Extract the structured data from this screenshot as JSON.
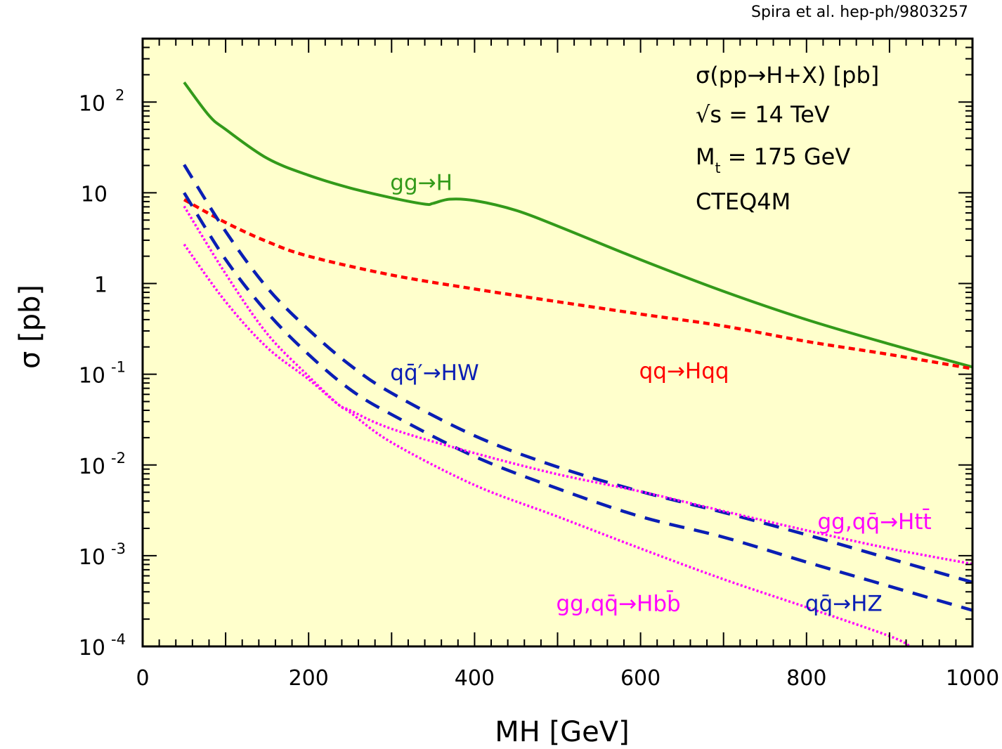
{
  "credit": "Spira et al. hep-ph/9803257",
  "info_box": {
    "lines": [
      {
        "text": "σ(pp→H+X) [pb]"
      },
      {
        "text": "√s = 14 TeV"
      },
      {
        "text": "M",
        "sub": "t",
        "rest": " = 175 GeV"
      },
      {
        "text": "CTEQ4M"
      }
    ]
  },
  "colors": {
    "plot_background": "#ffffcc",
    "axis": "#000000",
    "gg_H": "#339a1a",
    "qq_Hqq": "#ff0000",
    "HW": "#0a1eb4",
    "HZ": "#0a1eb4",
    "Htt": "#ff00ff",
    "Hbb": "#ff00ff"
  },
  "chart_data": {
    "type": "line",
    "title": "σ(pp→H+X) [pb]",
    "xlabel": "MH [GeV]",
    "ylabel": "σ [pb]",
    "xscale": "linear",
    "yscale": "log",
    "xlim": [
      0,
      1000
    ],
    "ylim": [
      0.0001,
      500
    ],
    "grid": false,
    "x_ticks": [
      0,
      200,
      400,
      600,
      800,
      1000
    ],
    "x_tick_labels": [
      "0",
      "200",
      "400",
      "600",
      "800",
      "1000"
    ],
    "y_ticks": [
      {
        "value": 100,
        "base": "10",
        "exp": "2"
      },
      {
        "value": 10,
        "base": "10",
        "exp": ""
      },
      {
        "value": 1,
        "base": "1",
        "exp": ""
      },
      {
        "value": 0.1,
        "base": "10",
        "exp": "-1"
      },
      {
        "value": 0.01,
        "base": "10",
        "exp": "-2"
      },
      {
        "value": 0.001,
        "base": "10",
        "exp": "-3"
      },
      {
        "value": 0.0001,
        "base": "10",
        "exp": "-4"
      }
    ],
    "series": [
      {
        "name": "gg→H",
        "key": "gg_H",
        "style": "solid",
        "label": {
          "text": "gg→H",
          "x": 300,
          "y": 13
        },
        "x": [
          50,
          80,
          100,
          150,
          200,
          250,
          300,
          340,
          350,
          370,
          400,
          450,
          500,
          600,
          700,
          800,
          900,
          1000
        ],
        "y": [
          165,
          71,
          50,
          24,
          15.6,
          11.3,
          8.8,
          7.5,
          7.65,
          8.5,
          8.2,
          6.4,
          4.3,
          1.83,
          0.82,
          0.4,
          0.215,
          0.12
        ]
      },
      {
        "name": "qq→Hqq",
        "key": "qq_Hqq",
        "style": "dotted-dash",
        "label": {
          "text": "qq→Hqq",
          "x": 600,
          "y": 0.11
        },
        "x": [
          50,
          100,
          150,
          200,
          300,
          400,
          500,
          600,
          700,
          800,
          900,
          1000
        ],
        "y": [
          8.4,
          4.7,
          2.9,
          2.0,
          1.24,
          0.87,
          0.63,
          0.46,
          0.34,
          0.23,
          0.165,
          0.115
        ]
      },
      {
        "name": "qq̄′→HW",
        "key": "HW",
        "style": "dashed",
        "label": {
          "text": "qq̄′→HW",
          "x": 300,
          "y": 0.105
        },
        "x": [
          50,
          100,
          150,
          200,
          250,
          300,
          400,
          500,
          600,
          700,
          800,
          900,
          1000
        ],
        "y": [
          20.4,
          3.75,
          0.9,
          0.31,
          0.126,
          0.062,
          0.021,
          0.0095,
          0.0051,
          0.003,
          0.0017,
          0.00093,
          0.00051
        ]
      },
      {
        "name": "qq̄→HZ",
        "key": "HZ",
        "style": "dashed",
        "label": {
          "text": "qq̄→HZ",
          "x": 800,
          "y": 0.0003
        },
        "x": [
          50,
          100,
          150,
          200,
          250,
          300,
          400,
          500,
          600,
          700,
          800,
          900,
          1000
        ],
        "y": [
          10,
          1.84,
          0.48,
          0.165,
          0.068,
          0.036,
          0.0124,
          0.0055,
          0.0027,
          0.0016,
          0.00085,
          0.00046,
          0.00025
        ]
      },
      {
        "name": "gg,qq̄→Htt̄",
        "key": "Htt",
        "style": "dotted",
        "label": {
          "text": "gg,qq̄→Htt̄",
          "x": 815,
          "y": 0.0024
        },
        "x": [
          50,
          100,
          150,
          200,
          235,
          250,
          300,
          400,
          500,
          600,
          700,
          800,
          900,
          1000
        ],
        "y": [
          2.7,
          0.63,
          0.197,
          0.088,
          0.047,
          0.04,
          0.025,
          0.0135,
          0.0079,
          0.0051,
          0.0031,
          0.0019,
          0.0012,
          0.00081
        ]
      },
      {
        "name": "gg,qq̄→Hbb̄",
        "key": "Hbb",
        "style": "dotted",
        "label": {
          "text": "gg,qq̄→Hbb̄",
          "x": 500,
          "y": 0.0003
        },
        "x": [
          50,
          100,
          150,
          200,
          235,
          250,
          300,
          400,
          500,
          600,
          700,
          800,
          900,
          925
        ],
        "y": [
          7.1,
          1.28,
          0.28,
          0.095,
          0.047,
          0.038,
          0.0177,
          0.006,
          0.0027,
          0.0012,
          0.00055,
          0.00027,
          0.00013,
          0.0001
        ]
      }
    ]
  }
}
